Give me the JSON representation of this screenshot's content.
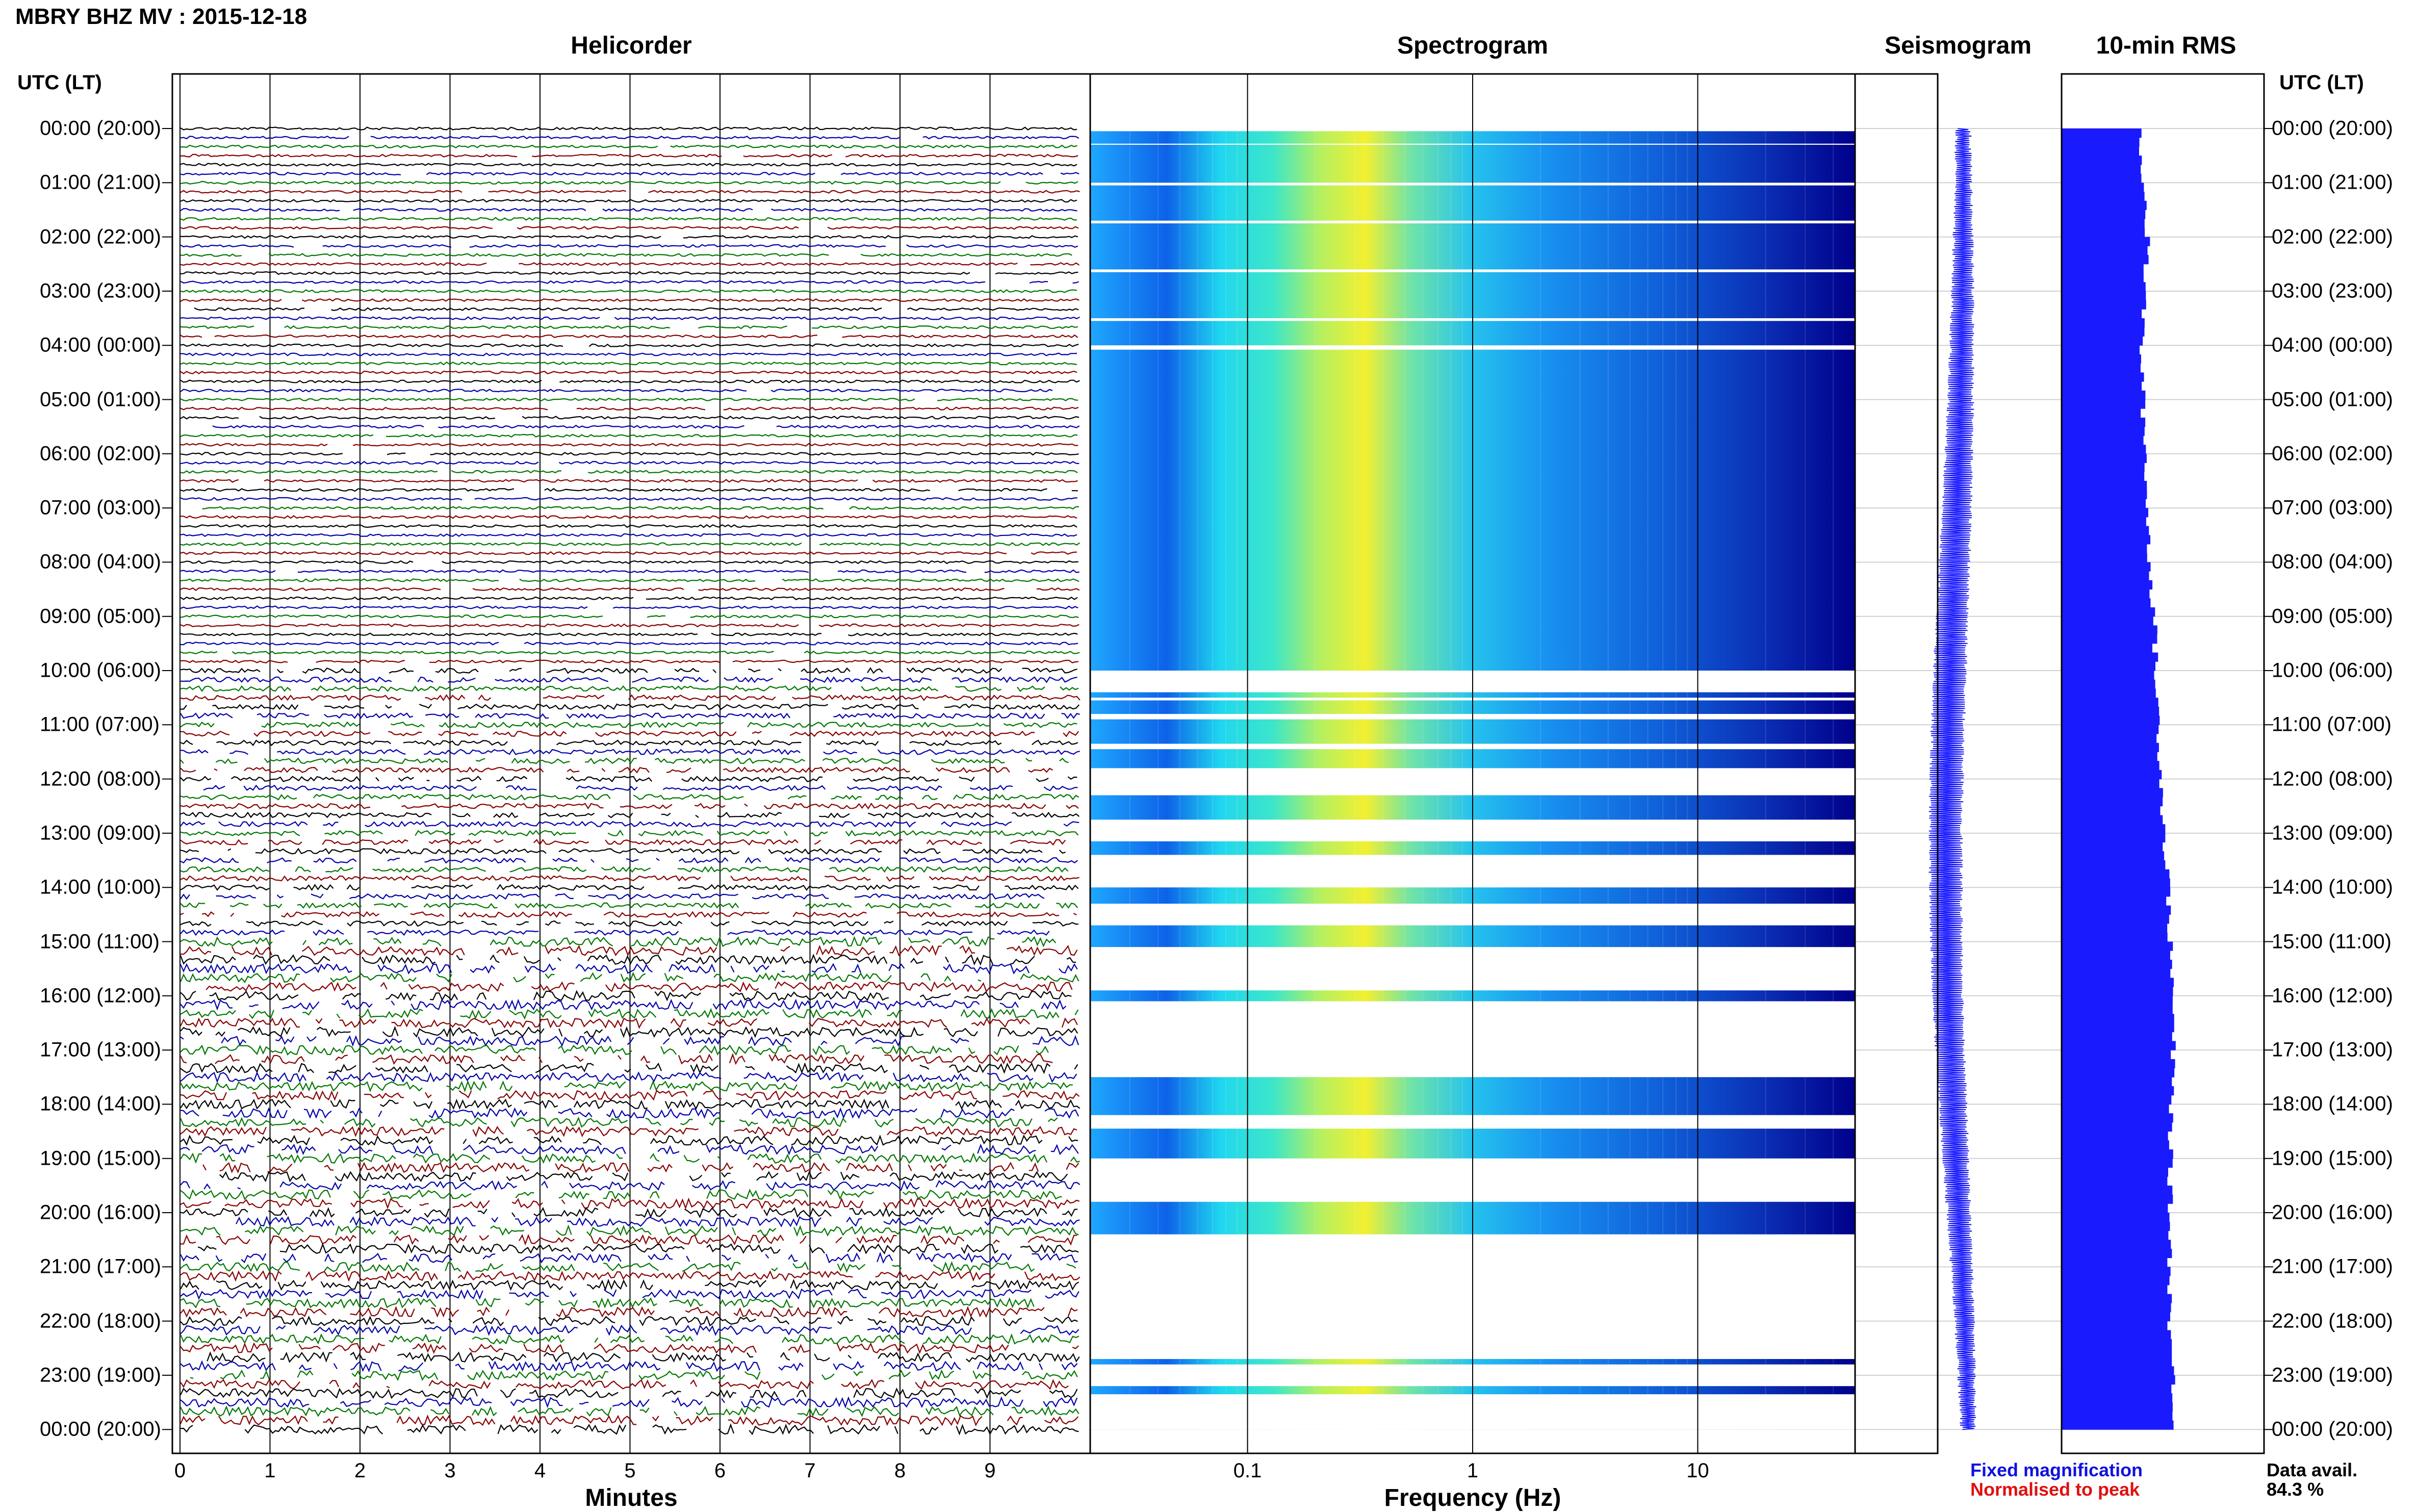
{
  "header": {
    "station_title": "MBRY BHZ MV : 2015-12-18",
    "utc_header_left": "UTC (LT)",
    "utc_header_right": "UTC (LT)"
  },
  "panels": {
    "helicorder": "Helicorder",
    "spectrogram": "Spectrogram",
    "seismogram": "Seismogram",
    "rms": "10-min RMS"
  },
  "time_labels": [
    "00:00 (20:00)",
    "01:00 (21:00)",
    "02:00 (22:00)",
    "03:00 (23:00)",
    "04:00 (00:00)",
    "05:00 (01:00)",
    "06:00 (02:00)",
    "07:00 (03:00)",
    "08:00 (04:00)",
    "09:00 (05:00)",
    "10:00 (06:00)",
    "11:00 (07:00)",
    "12:00 (08:00)",
    "13:00 (09:00)",
    "14:00 (10:00)",
    "15:00 (11:00)",
    "16:00 (12:00)",
    "17:00 (13:00)",
    "18:00 (14:00)",
    "19:00 (15:00)",
    "20:00 (16:00)",
    "21:00 (17:00)",
    "22:00 (18:00)",
    "23:00 (19:00)",
    "00:00 (20:00)"
  ],
  "footer": {
    "helicorder_xlabel": "Minutes",
    "spectrogram_xlabel": "Frequency (Hz)",
    "legend_fixed": "Fixed magnification",
    "legend_normalised": "Normalised to peak",
    "data_avail_label": "Data avail.",
    "data_avail_value": "84.3 %"
  },
  "colors": {
    "legend_fixed": "#1010e0",
    "legend_normalised": "#e01010",
    "trace_cycle": [
      "#000000",
      "#0000aa",
      "#007700",
      "#880000"
    ],
    "rms_fill": "#1a1aff",
    "spectrogram_dark": "#00008b"
  },
  "chart_data": [
    {
      "type": "line",
      "name": "helicorder",
      "title": "Helicorder",
      "xlabel": "Minutes",
      "x_ticks": [
        "0",
        "1",
        "2",
        "3",
        "4",
        "5",
        "6",
        "7",
        "8",
        "9"
      ],
      "xlim": [
        0,
        10
      ],
      "rows_per_hour": 6,
      "row_count": 145,
      "y_ticks": "time_labels"
    },
    {
      "type": "heatmap",
      "name": "spectrogram",
      "title": "Spectrogram",
      "xlabel": "Frequency (Hz)",
      "x_scale": "log",
      "x_ticks": [
        "0.1",
        "1",
        "10"
      ],
      "xlim": [
        0.02,
        50
      ],
      "gaps_utc_hours": [
        [
          0.0,
          0.05
        ],
        [
          0.28,
          0.3
        ],
        [
          1.0,
          1.05
        ],
        [
          1.7,
          1.75
        ],
        [
          2.6,
          2.65
        ],
        [
          3.5,
          3.55
        ],
        [
          4.0,
          4.08
        ],
        [
          10.0,
          10.4
        ],
        [
          10.5,
          10.55
        ],
        [
          10.8,
          10.9
        ],
        [
          11.35,
          11.45
        ],
        [
          11.8,
          12.3
        ],
        [
          12.75,
          13.15
        ],
        [
          13.4,
          14.0
        ],
        [
          14.3,
          14.7
        ],
        [
          15.1,
          15.9
        ],
        [
          16.1,
          17.5
        ],
        [
          18.2,
          18.45
        ],
        [
          19.0,
          19.8
        ],
        [
          20.4,
          22.7
        ],
        [
          22.8,
          23.2
        ],
        [
          23.35,
          24.0
        ]
      ]
    },
    {
      "type": "line",
      "name": "seismogram",
      "title": "Seismogram"
    },
    {
      "type": "bar",
      "name": "rms",
      "title": "10-min RMS",
      "orientation": "horizontal",
      "bin_minutes": 10,
      "hourly_relative_amplitude": [
        0.55,
        0.58,
        0.6,
        0.58,
        0.56,
        0.57,
        0.59,
        0.6,
        0.62,
        0.65,
        0.66,
        0.68,
        0.7,
        0.72,
        0.75,
        0.76,
        0.78,
        0.78,
        0.77,
        0.76,
        0.76,
        0.76,
        0.76,
        0.78,
        0.8
      ]
    }
  ]
}
